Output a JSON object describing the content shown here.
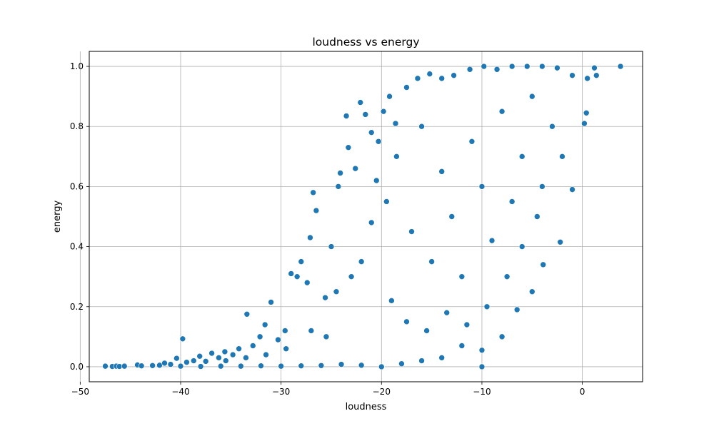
{
  "chart_data": {
    "type": "scatter",
    "title": "loudness vs energy",
    "xlabel": "loudness",
    "ylabel": "energy",
    "xlim": [
      -49.1,
      6.0
    ],
    "ylim": [
      -0.05,
      1.05
    ],
    "xticks": [
      -50,
      -40,
      -30,
      -20,
      -10,
      0
    ],
    "xtick_labels": [
      "−50",
      "−40",
      "−30",
      "−20",
      "−10",
      "0"
    ],
    "yticks": [
      0.0,
      0.2,
      0.4,
      0.6,
      0.8,
      1.0
    ],
    "ytick_labels": [
      "0.0",
      "0.2",
      "0.4",
      "0.6",
      "0.8",
      "1.0"
    ],
    "grid": true,
    "marker_color": "#1f77b4",
    "marker_edge_color": "#ffffff",
    "points": [
      [
        -47.5,
        0.002
      ],
      [
        -46.8,
        0.001
      ],
      [
        -46.4,
        0.002
      ],
      [
        -46.1,
        0.001
      ],
      [
        -45.6,
        0.002
      ],
      [
        -44.3,
        0.006
      ],
      [
        -43.9,
        0.003
      ],
      [
        -42.8,
        0.004
      ],
      [
        -42.1,
        0.005
      ],
      [
        -41.6,
        0.012
      ],
      [
        -41.0,
        0.008
      ],
      [
        -40.4,
        0.028
      ],
      [
        -39.8,
        0.093
      ],
      [
        -39.4,
        0.015
      ],
      [
        -38.7,
        0.02
      ],
      [
        -38.1,
        0.035
      ],
      [
        -37.5,
        0.018
      ],
      [
        -36.9,
        0.045
      ],
      [
        -36.2,
        0.03
      ],
      [
        -35.6,
        0.05
      ],
      [
        -34.8,
        0.04
      ],
      [
        -34.2,
        0.06
      ],
      [
        -33.4,
        0.175
      ],
      [
        -32.8,
        0.07
      ],
      [
        -32.1,
        0.1
      ],
      [
        -31.6,
        0.14
      ],
      [
        -31.0,
        0.215
      ],
      [
        -30.3,
        0.09
      ],
      [
        -29.6,
        0.12
      ],
      [
        -29.0,
        0.31
      ],
      [
        -28.4,
        0.3
      ],
      [
        -28.0,
        0.35
      ],
      [
        -27.4,
        0.28
      ],
      [
        -27.1,
        0.43
      ],
      [
        -26.8,
        0.58
      ],
      [
        -26.5,
        0.52
      ],
      [
        -25.6,
        0.23
      ],
      [
        -25.0,
        0.4
      ],
      [
        -24.3,
        0.6
      ],
      [
        -24.1,
        0.645
      ],
      [
        -23.5,
        0.835
      ],
      [
        -23.3,
        0.73
      ],
      [
        -22.6,
        0.66
      ],
      [
        -22.1,
        0.88
      ],
      [
        -21.6,
        0.84
      ],
      [
        -21.0,
        0.78
      ],
      [
        -20.3,
        0.75
      ],
      [
        -19.8,
        0.85
      ],
      [
        -19.2,
        0.9
      ],
      [
        -18.6,
        0.81
      ],
      [
        -17.5,
        0.93
      ],
      [
        -16.4,
        0.96
      ],
      [
        -15.2,
        0.975
      ],
      [
        -14.0,
        0.96
      ],
      [
        -12.8,
        0.97
      ],
      [
        -11.2,
        0.99
      ],
      [
        -9.8,
        1.0
      ],
      [
        -8.5,
        0.99
      ],
      [
        -7.0,
        1.0
      ],
      [
        -5.5,
        1.0
      ],
      [
        -4.0,
        1.0
      ],
      [
        -2.5,
        0.995
      ],
      [
        -1.0,
        0.97
      ],
      [
        0.5,
        0.96
      ],
      [
        1.2,
        0.995
      ],
      [
        1.4,
        0.97
      ],
      [
        3.8,
        1.0
      ],
      [
        0.2,
        0.81
      ],
      [
        0.4,
        0.845
      ],
      [
        -1.0,
        0.59
      ],
      [
        -2.2,
        0.415
      ],
      [
        -3.9,
        0.34
      ],
      [
        -5.0,
        0.25
      ],
      [
        -6.5,
        0.19
      ],
      [
        -8.0,
        0.1
      ],
      [
        -10.0,
        0.055
      ],
      [
        -10.0,
        0.0
      ],
      [
        -12.0,
        0.07
      ],
      [
        -14.0,
        0.03
      ],
      [
        -16.0,
        0.02
      ],
      [
        -18.0,
        0.01
      ],
      [
        -20.0,
        0.0
      ],
      [
        -22.0,
        0.005
      ],
      [
        -24.0,
        0.008
      ],
      [
        -26.0,
        0.004
      ],
      [
        -28.0,
        0.003
      ],
      [
        -30.0,
        0.002
      ],
      [
        -32.0,
        0.003
      ],
      [
        -34.0,
        0.002
      ],
      [
        -36.0,
        0.002
      ],
      [
        -38.0,
        0.001
      ],
      [
        -40.0,
        0.002
      ],
      [
        -20.5,
        0.62
      ],
      [
        -19.5,
        0.55
      ],
      [
        -18.5,
        0.7
      ],
      [
        -17.0,
        0.45
      ],
      [
        -16.0,
        0.8
      ],
      [
        -15.0,
        0.35
      ],
      [
        -14.0,
        0.65
      ],
      [
        -13.0,
        0.5
      ],
      [
        -12.0,
        0.3
      ],
      [
        -11.0,
        0.75
      ],
      [
        -10.0,
        0.6
      ],
      [
        -9.0,
        0.42
      ],
      [
        -8.0,
        0.85
      ],
      [
        -7.0,
        0.55
      ],
      [
        -6.0,
        0.7
      ],
      [
        -5.0,
        0.9
      ],
      [
        -4.0,
        0.6
      ],
      [
        -3.0,
        0.8
      ],
      [
        -2.0,
        0.7
      ],
      [
        -22.0,
        0.35
      ],
      [
        -23.0,
        0.3
      ],
      [
        -24.5,
        0.25
      ],
      [
        -21.0,
        0.48
      ],
      [
        -19.0,
        0.22
      ],
      [
        -17.5,
        0.15
      ],
      [
        -15.5,
        0.12
      ],
      [
        -13.5,
        0.18
      ],
      [
        -11.5,
        0.14
      ],
      [
        -9.5,
        0.2
      ],
      [
        -7.5,
        0.3
      ],
      [
        -6.0,
        0.4
      ],
      [
        -4.5,
        0.5
      ],
      [
        -27.0,
        0.12
      ],
      [
        -25.5,
        0.1
      ],
      [
        -29.5,
        0.06
      ],
      [
        -31.5,
        0.04
      ],
      [
        -33.5,
        0.03
      ],
      [
        -35.5,
        0.02
      ]
    ]
  }
}
